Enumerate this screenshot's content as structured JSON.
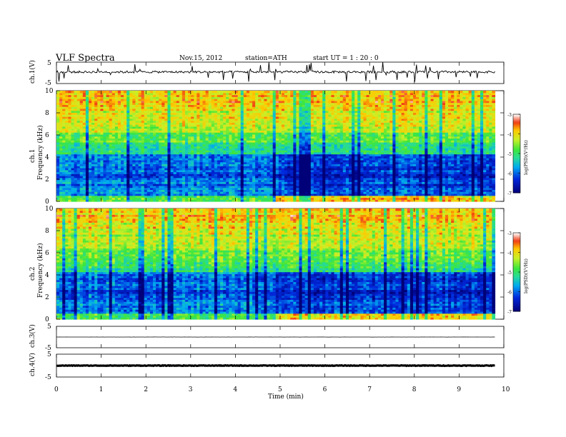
{
  "header": {
    "title": "VLF  Spectra",
    "date": "Nov.15, 2012",
    "station": "station=ATH",
    "start": "start  UT  =   1 : 20 : 0"
  },
  "chart_data": [
    {
      "type": "line",
      "panel": "ch1-waveform",
      "ylabel": "ch.1(V)",
      "ylim": [
        -5,
        5
      ],
      "yticks": [
        "5",
        "-5"
      ],
      "description_values": {
        "baseline": 0.4,
        "spread": 0.5
      }
    },
    {
      "type": "heatmap",
      "panel": "ch1-spectrogram",
      "ylabel_top": "ch.1",
      "ylabel": "Frequency  (kHz)",
      "ylim": [
        0,
        10
      ],
      "yticks": [
        "0",
        "2",
        "4",
        "6",
        "8",
        "10"
      ],
      "x_extent_min": 9.8,
      "colorbar": {
        "label": "log(PSD)(V²/Hz)",
        "range": [
          -7,
          -3
        ],
        "ticks": [
          "-3",
          "-4",
          "-5",
          "-6",
          "-7"
        ]
      }
    },
    {
      "type": "heatmap",
      "panel": "ch2-spectrogram",
      "ylabel_top": "ch.2",
      "ylabel": "Frequency  (kHz)",
      "ylim": [
        0,
        10
      ],
      "yticks": [
        "0",
        "2",
        "4",
        "6",
        "8",
        "10"
      ],
      "x_extent_min": 9.8,
      "colorbar": {
        "label": "log(PSD)(V²/Hz)",
        "range": [
          -7,
          -3
        ],
        "ticks": [
          "-3",
          "-4",
          "-5",
          "-6",
          "-7"
        ]
      }
    },
    {
      "type": "line",
      "panel": "ch3-waveform",
      "ylabel": "ch.3(V)",
      "ylim": [
        -5,
        5
      ],
      "yticks": [
        "5",
        "-5"
      ],
      "description_values": {
        "baseline": 0.0,
        "spread": 0.02
      }
    },
    {
      "type": "line",
      "panel": "ch4-waveform",
      "ylabel": "ch.4(V)",
      "ylim": [
        -5,
        5
      ],
      "yticks": [
        "5",
        "-5"
      ],
      "description_values": {
        "baseline": 0.0,
        "spread": 0.12
      }
    }
  ],
  "x_axis": {
    "label": "Time  (min)",
    "xlim": [
      0,
      10
    ],
    "ticks": [
      "0",
      "1",
      "2",
      "3",
      "4",
      "5",
      "6",
      "7",
      "8",
      "9",
      "10"
    ]
  }
}
